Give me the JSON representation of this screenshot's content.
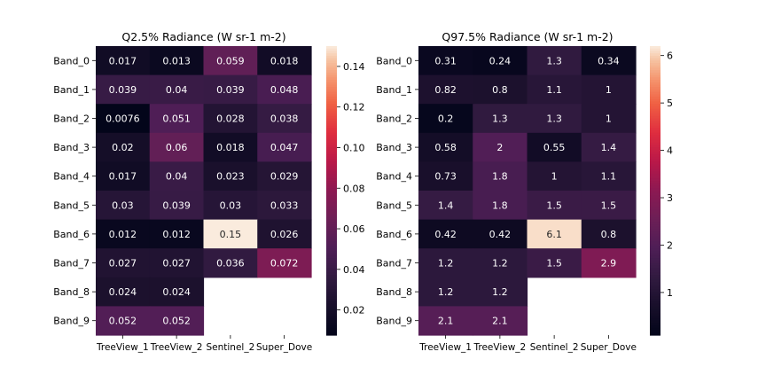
{
  "chart_data": [
    {
      "type": "heatmap",
      "title": "Q2.5% Radiance (W sr-1 m-2)",
      "xlabel": "",
      "ylabel": "",
      "x_categories": [
        "TreeView_1",
        "TreeView_2",
        "Sentinel_2",
        "Super_Dove"
      ],
      "y_categories": [
        "Band_0",
        "Band_1",
        "Band_2",
        "Band_3",
        "Band_4",
        "Band_5",
        "Band_6",
        "Band_7",
        "Band_8",
        "Band_9"
      ],
      "values": [
        [
          0.017,
          0.013,
          0.059,
          0.018
        ],
        [
          0.039,
          0.04,
          0.039,
          0.048
        ],
        [
          0.0076,
          0.051,
          0.028,
          0.038
        ],
        [
          0.02,
          0.06,
          0.018,
          0.047
        ],
        [
          0.017,
          0.04,
          0.023,
          0.029
        ],
        [
          0.03,
          0.039,
          0.03,
          0.033
        ],
        [
          0.012,
          0.012,
          0.15,
          0.026
        ],
        [
          0.027,
          0.027,
          0.036,
          0.072
        ],
        [
          0.024,
          0.024,
          null,
          null
        ],
        [
          0.052,
          0.052,
          null,
          null
        ]
      ],
      "annotations": [
        [
          "0.017",
          "0.013",
          "0.059",
          "0.018"
        ],
        [
          "0.039",
          "0.04",
          "0.039",
          "0.048"
        ],
        [
          "0.0076",
          "0.051",
          "0.028",
          "0.038"
        ],
        [
          "0.02",
          "0.06",
          "0.018",
          "0.047"
        ],
        [
          "0.017",
          "0.04",
          "0.023",
          "0.029"
        ],
        [
          "0.03",
          "0.039",
          "0.03",
          "0.033"
        ],
        [
          "0.012",
          "0.012",
          "0.15",
          "0.026"
        ],
        [
          "0.027",
          "0.027",
          "0.036",
          "0.072"
        ],
        [
          "0.024",
          "0.024",
          "",
          ""
        ],
        [
          "0.052",
          "0.052",
          "",
          ""
        ]
      ],
      "colorbar": {
        "range": [
          0.0076,
          0.15
        ],
        "ticks": [
          0.02,
          0.04,
          0.06,
          0.08,
          0.1,
          0.12,
          0.14
        ],
        "tick_labels": [
          "0.02",
          "0.04",
          "0.06",
          "0.08",
          "0.10",
          "0.12",
          "0.14"
        ]
      },
      "colormap": "rocket"
    },
    {
      "type": "heatmap",
      "title": "Q97.5% Radiance (W sr-1 m-2)",
      "xlabel": "",
      "ylabel": "",
      "x_categories": [
        "TreeView_1",
        "TreeView_2",
        "Sentinel_2",
        "Super_Dove"
      ],
      "y_categories": [
        "Band_0",
        "Band_1",
        "Band_2",
        "Band_3",
        "Band_4",
        "Band_5",
        "Band_6",
        "Band_7",
        "Band_8",
        "Band_9"
      ],
      "values": [
        [
          0.31,
          0.24,
          1.3,
          0.34
        ],
        [
          0.82,
          0.8,
          1.1,
          1
        ],
        [
          0.2,
          1.3,
          1.3,
          1
        ],
        [
          0.58,
          2,
          0.55,
          1.4
        ],
        [
          0.73,
          1.8,
          1,
          1.1
        ],
        [
          1.4,
          1.8,
          1.5,
          1.5
        ],
        [
          0.42,
          0.42,
          6.1,
          0.8
        ],
        [
          1.2,
          1.2,
          1.5,
          2.9
        ],
        [
          1.2,
          1.2,
          null,
          null
        ],
        [
          2.1,
          2.1,
          null,
          null
        ]
      ],
      "annotations": [
        [
          "0.31",
          "0.24",
          "1.3",
          "0.34"
        ],
        [
          "0.82",
          "0.8",
          "1.1",
          "1"
        ],
        [
          "0.2",
          "1.3",
          "1.3",
          "1"
        ],
        [
          "0.58",
          "2",
          "0.55",
          "1.4"
        ],
        [
          "0.73",
          "1.8",
          "1",
          "1.1"
        ],
        [
          "1.4",
          "1.8",
          "1.5",
          "1.5"
        ],
        [
          "0.42",
          "0.42",
          "6.1",
          "0.8"
        ],
        [
          "1.2",
          "1.2",
          "1.5",
          "2.9"
        ],
        [
          "1.2",
          "1.2",
          "",
          ""
        ],
        [
          "2.1",
          "2.1",
          "",
          ""
        ]
      ],
      "colorbar": {
        "range": [
          0.1,
          6.2
        ],
        "ticks": [
          1,
          2,
          3,
          4,
          5,
          6
        ],
        "tick_labels": [
          "1",
          "2",
          "3",
          "4",
          "5",
          "6"
        ]
      },
      "colormap": "rocket"
    }
  ]
}
